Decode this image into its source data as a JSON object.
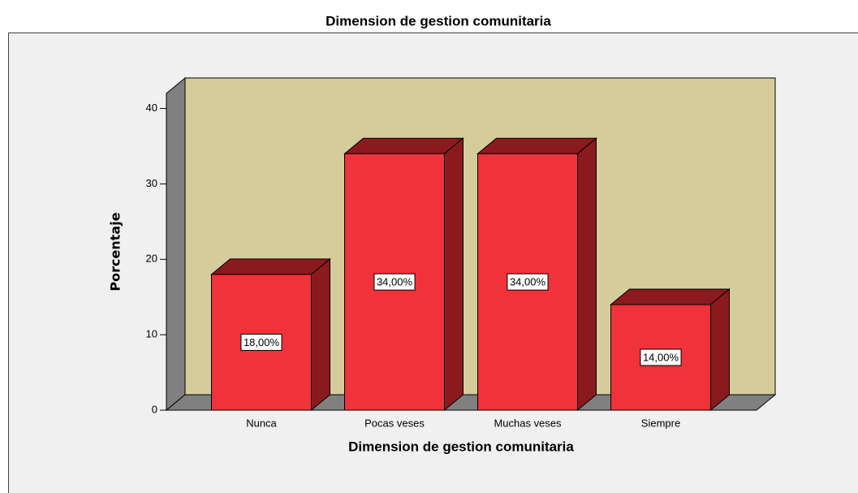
{
  "chart_data": {
    "type": "bar3d",
    "title": "Dimension de gestion comunitaria",
    "x_label": "Dimension de gestion comunitaria",
    "y_label": "Porcentaje",
    "categories": [
      "Nunca",
      "Pocas veses",
      "Muchas veses",
      "Siempre"
    ],
    "values": [
      18,
      34,
      34,
      14
    ],
    "value_labels": [
      "18,00%",
      "34,00%",
      "34,00%",
      "14,00%"
    ],
    "color": "#f0323a",
    "ylim": [
      0,
      42
    ],
    "yticks": [
      0,
      10,
      20,
      30,
      40
    ]
  }
}
